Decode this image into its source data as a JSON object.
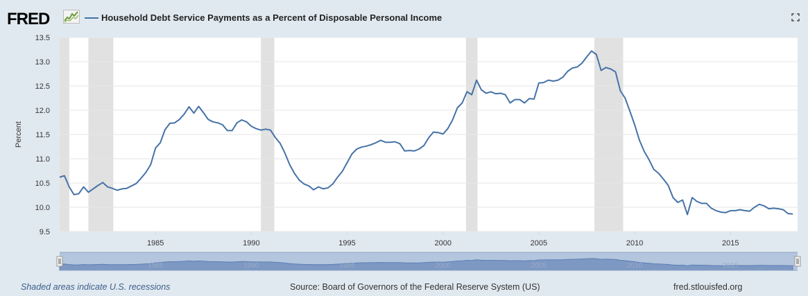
{
  "header": {
    "logo_text": "FRED",
    "logo_icon": "fred-chart-icon",
    "expand_icon": "expand-icon",
    "accent_color": "#4572a7"
  },
  "footer": {
    "note": "Shaded areas indicate U.S. recessions",
    "source": "Source: Board of Governors of the Federal Reserve System (US)",
    "site": "fred.stlouisfed.org"
  },
  "chart_data": {
    "type": "line",
    "title": "Household Debt Service Payments as a Percent of Disposable Personal Income",
    "xlabel": "",
    "ylabel": "Percent",
    "xlim": [
      1980.0,
      2018.5
    ],
    "ylim": [
      9.5,
      13.5
    ],
    "y_ticks": [
      "9.5",
      "10.0",
      "10.5",
      "11.0",
      "11.5",
      "12.0",
      "12.5",
      "13.0",
      "13.5"
    ],
    "x_ticks": [
      "1985",
      "1990",
      "1995",
      "2000",
      "2005",
      "2010",
      "2015"
    ],
    "grid": true,
    "line_color": "#4572a7",
    "recessions": [
      [
        1980.0,
        1980.5
      ],
      [
        1981.5,
        1982.8
      ],
      [
        1990.5,
        1991.2
      ],
      [
        2001.2,
        2001.8
      ],
      [
        2007.9,
        2009.4
      ]
    ],
    "series": [
      {
        "x": [
          1980.0,
          1980.25,
          1980.5,
          1980.75,
          1981.0,
          1981.25,
          1981.5,
          1981.75,
          1982.0,
          1982.25,
          1982.5,
          1982.75,
          1983.0,
          1983.25,
          1983.5,
          1983.75,
          1984.0,
          1984.25,
          1984.5,
          1984.75,
          1985.0,
          1985.25,
          1985.5,
          1985.75,
          1986.0,
          1986.25,
          1986.5,
          1986.75,
          1987.0,
          1987.25,
          1987.5,
          1987.75,
          1988.0,
          1988.25,
          1988.5,
          1988.75,
          1989.0,
          1989.25,
          1989.5,
          1989.75,
          1990.0,
          1990.25,
          1990.5,
          1990.75,
          1991.0,
          1991.25,
          1991.5,
          1991.75,
          1992.0,
          1992.25,
          1992.5,
          1992.75,
          1993.0,
          1993.25,
          1993.5,
          1993.75,
          1994.0,
          1994.25,
          1994.5,
          1994.75,
          1995.0,
          1995.25,
          1995.5,
          1995.75,
          1996.0,
          1996.25,
          1996.5,
          1996.75,
          1997.0,
          1997.25,
          1997.5,
          1997.75,
          1998.0,
          1998.25,
          1998.5,
          1998.75,
          1999.0,
          1999.25,
          1999.5,
          1999.75,
          2000.0,
          2000.25,
          2000.5,
          2000.75,
          2001.0,
          2001.25,
          2001.5,
          2001.75,
          2002.0,
          2002.25,
          2002.5,
          2002.75,
          2003.0,
          2003.25,
          2003.5,
          2003.75,
          2004.0,
          2004.25,
          2004.5,
          2004.75,
          2005.0,
          2005.25,
          2005.5,
          2005.75,
          2006.0,
          2006.25,
          2006.5,
          2006.75,
          2007.0,
          2007.25,
          2007.5,
          2007.75,
          2008.0,
          2008.25,
          2008.5,
          2008.75,
          2009.0,
          2009.25,
          2009.5,
          2009.75,
          2010.0,
          2010.25,
          2010.5,
          2010.75,
          2011.0,
          2011.25,
          2011.5,
          2011.75,
          2012.0,
          2012.25,
          2012.5,
          2012.75,
          2013.0,
          2013.25,
          2013.5,
          2013.75,
          2014.0,
          2014.25,
          2014.5,
          2014.75,
          2015.0,
          2015.25,
          2015.5,
          2015.75,
          2016.0,
          2016.25,
          2016.5,
          2016.75,
          2017.0,
          2017.25,
          2017.5,
          2017.75,
          2018.0,
          2018.25
        ],
        "values": [
          10.62,
          10.65,
          10.42,
          10.26,
          10.28,
          10.42,
          10.31,
          10.38,
          10.45,
          10.51,
          10.42,
          10.39,
          10.35,
          10.38,
          10.39,
          10.44,
          10.49,
          10.6,
          10.72,
          10.88,
          11.22,
          11.33,
          11.6,
          11.73,
          11.74,
          11.81,
          11.92,
          12.07,
          11.94,
          12.08,
          11.95,
          11.81,
          11.76,
          11.74,
          11.7,
          11.58,
          11.58,
          11.74,
          11.8,
          11.76,
          11.67,
          11.62,
          11.59,
          11.61,
          11.59,
          11.44,
          11.32,
          11.12,
          10.88,
          10.7,
          10.56,
          10.48,
          10.44,
          10.36,
          10.42,
          10.38,
          10.4,
          10.48,
          10.62,
          10.74,
          10.92,
          11.1,
          11.2,
          11.24,
          11.26,
          11.29,
          11.33,
          11.38,
          11.34,
          11.34,
          11.35,
          11.31,
          11.16,
          11.17,
          11.16,
          11.2,
          11.27,
          11.43,
          11.55,
          11.54,
          11.51,
          11.62,
          11.8,
          12.05,
          12.15,
          12.38,
          12.32,
          12.62,
          12.42,
          12.35,
          12.38,
          12.34,
          12.35,
          12.32,
          12.15,
          12.22,
          12.22,
          12.15,
          12.24,
          12.23,
          12.56,
          12.57,
          12.62,
          12.6,
          12.62,
          12.68,
          12.8,
          12.87,
          12.89,
          12.97,
          13.1,
          13.22,
          13.15,
          12.82,
          12.88,
          12.85,
          12.79,
          12.4,
          12.25,
          11.98,
          11.7,
          11.38,
          11.15,
          10.98,
          10.78,
          10.7,
          10.58,
          10.45,
          10.2,
          10.1,
          10.15,
          9.85,
          10.2,
          10.12,
          10.08,
          10.08,
          9.98,
          9.93,
          9.9,
          9.89,
          9.93,
          9.93,
          9.95,
          9.93,
          9.92,
          10.0,
          10.06,
          10.03,
          9.97,
          9.98,
          9.97,
          9.95,
          9.87,
          9.86
        ]
      }
    ]
  }
}
